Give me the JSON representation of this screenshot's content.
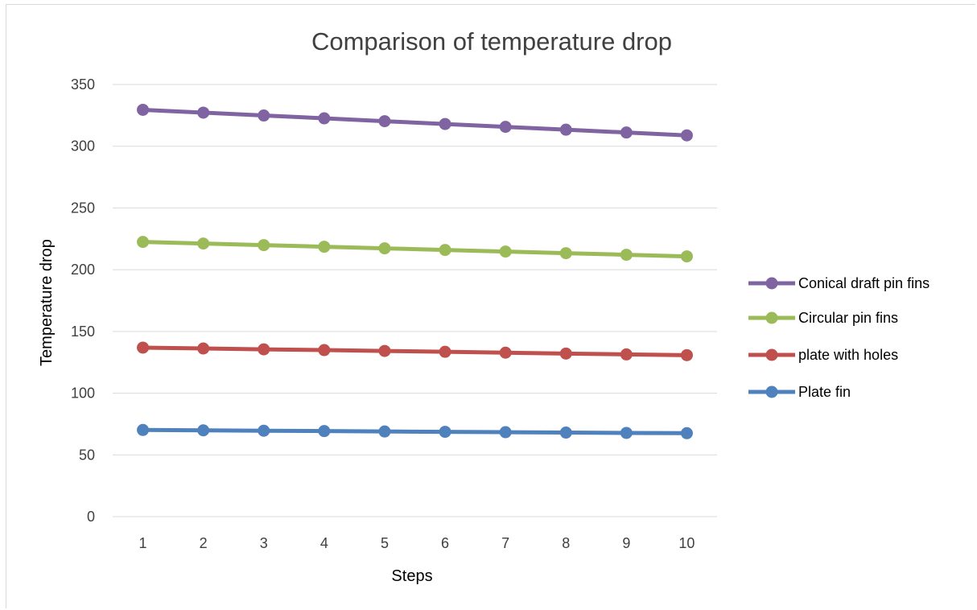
{
  "chart_data": {
    "type": "line",
    "title": "Comparison of temperature drop",
    "xlabel": "Steps",
    "ylabel": "Temperature drop",
    "categories": [
      "1",
      "2",
      "3",
      "4",
      "5",
      "6",
      "7",
      "8",
      "9",
      "10"
    ],
    "ylim": [
      0,
      350
    ],
    "yticks": [
      "0",
      "50",
      "100",
      "150",
      "200",
      "250",
      "300",
      "350"
    ],
    "grid": true,
    "legend_position": "right",
    "series": [
      {
        "name": "Conical draft pin fins",
        "color": "#8064a2",
        "values": [
          329.5,
          327.2,
          324.9,
          322.6,
          320.3,
          318.0,
          315.7,
          313.4,
          311.1,
          308.8
        ]
      },
      {
        "name": "Circular pin fins",
        "color": "#9bbb59",
        "values": [
          222.5,
          221.2,
          219.9,
          218.6,
          217.3,
          216.0,
          214.7,
          213.4,
          212.1,
          210.8
        ]
      },
      {
        "name": "plate with holes",
        "color": "#c0504d",
        "values": [
          136.9,
          136.2,
          135.5,
          134.9,
          134.2,
          133.5,
          132.8,
          132.1,
          131.4,
          130.8
        ]
      },
      {
        "name": "Plate fin",
        "color": "#4f81bd",
        "values": [
          70.2,
          69.9,
          69.6,
          69.3,
          69.0,
          68.7,
          68.4,
          68.1,
          67.8,
          67.6
        ]
      }
    ]
  }
}
